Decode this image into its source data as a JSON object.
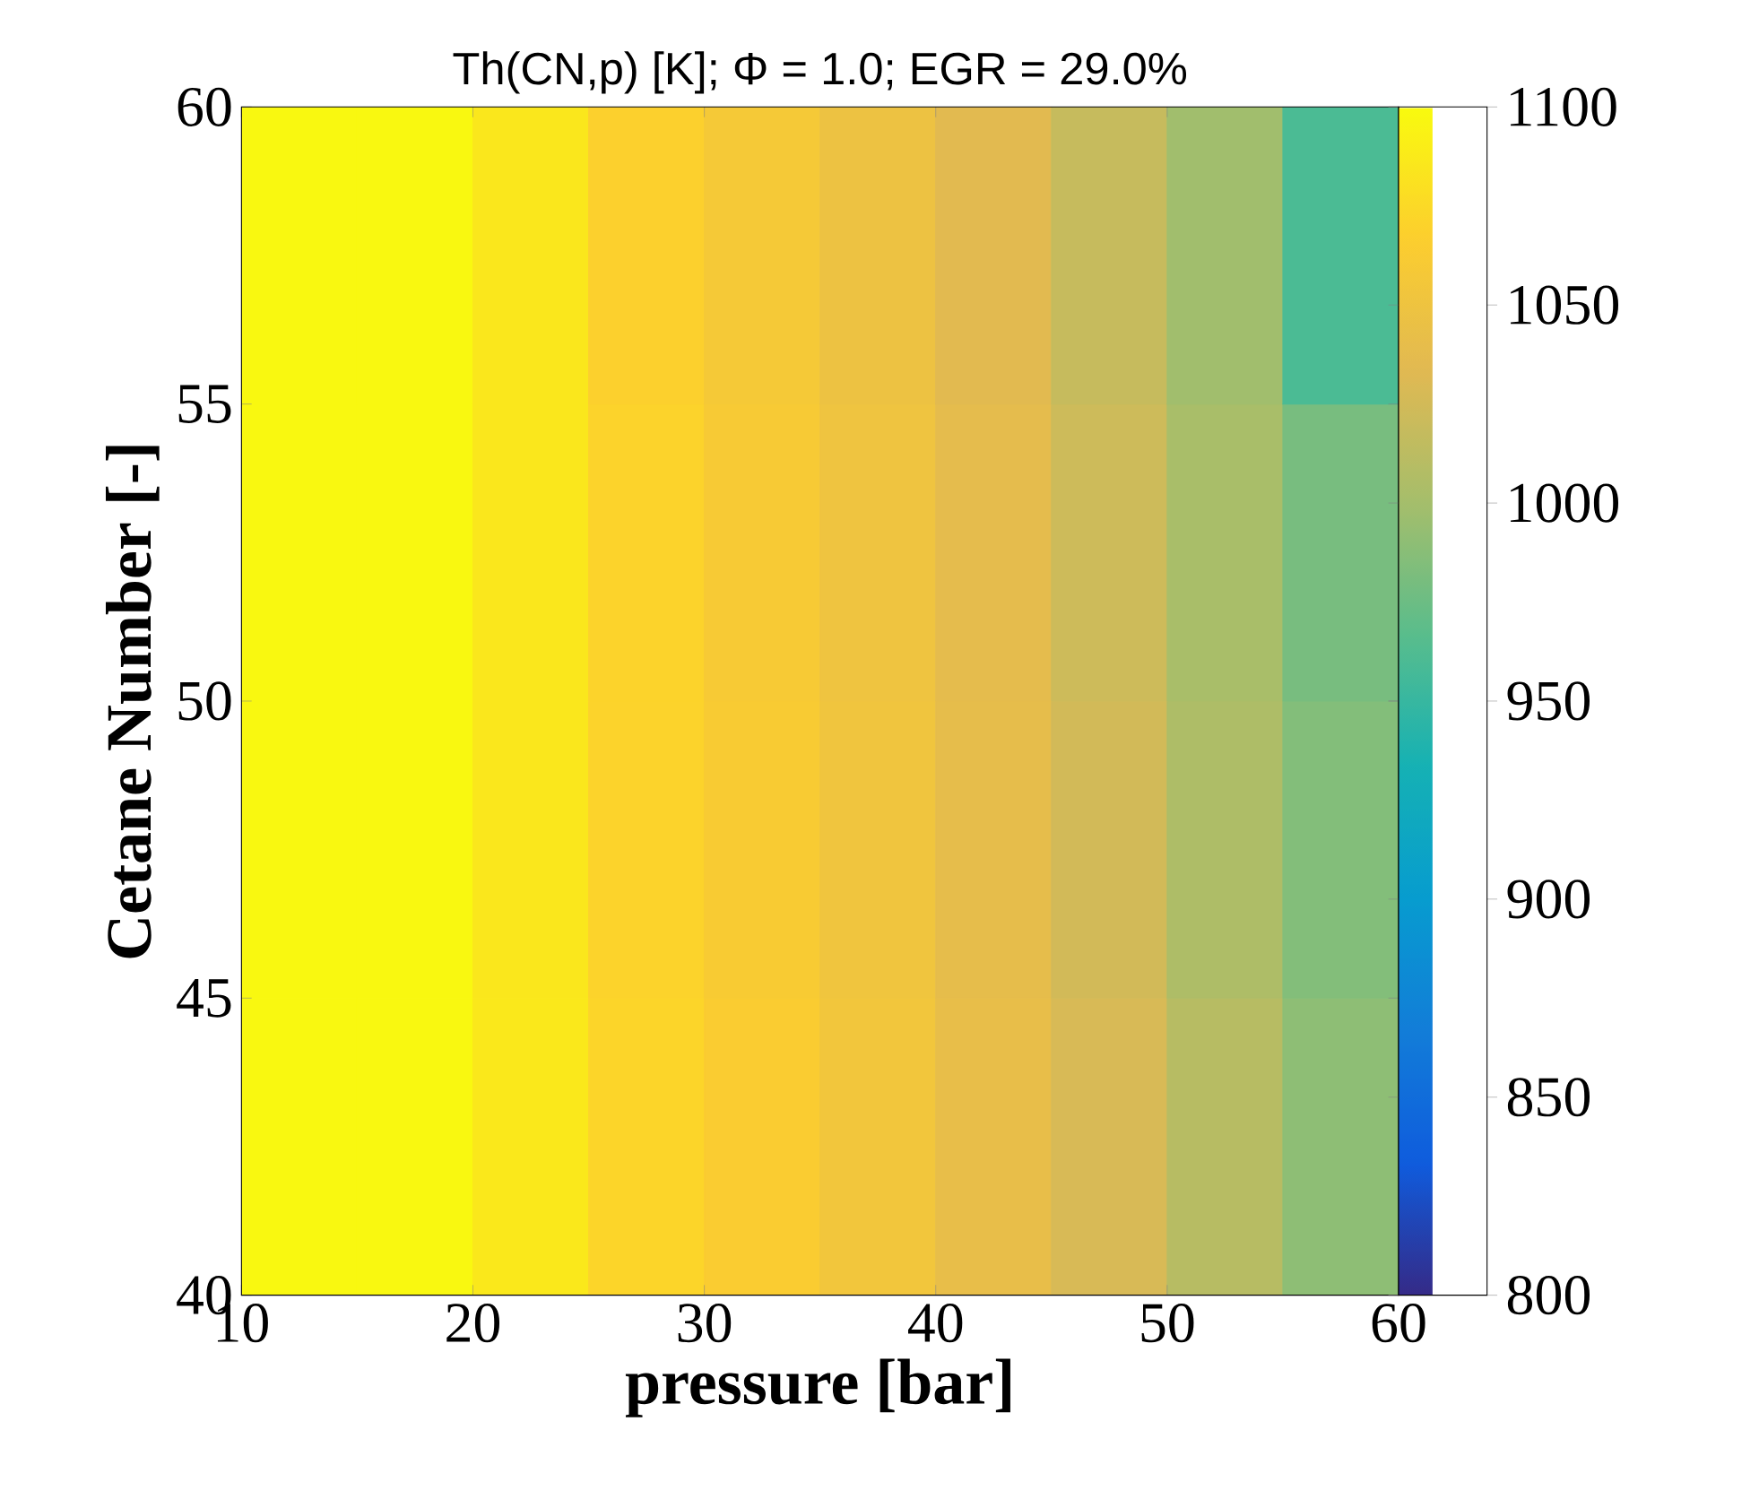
{
  "chart_data": {
    "type": "heatmap",
    "title": "Th(CN,p) [K]; Φ = 1.0; EGR = 29.0%",
    "xlabel": "pressure [bar]",
    "ylabel": "Cetane Number [-]",
    "x": [
      12.5,
      17.5,
      22.5,
      27.5,
      32.5,
      37.5,
      42.5,
      47.5,
      52.5,
      57.5
    ],
    "y": [
      57.5,
      52.5,
      47.5,
      42.5
    ],
    "cells": [
      [
        1098,
        1098,
        1085,
        1068,
        1058,
        1048,
        1035,
        1018,
        998,
        960
      ],
      [
        1098,
        1098,
        1085,
        1070,
        1060,
        1050,
        1038,
        1022,
        1002,
        980
      ],
      [
        1098,
        1098,
        1085,
        1070,
        1062,
        1052,
        1040,
        1025,
        1005,
        985
      ],
      [
        1098,
        1098,
        1086,
        1072,
        1064,
        1054,
        1042,
        1028,
        1010,
        990
      ]
    ],
    "xlim": [
      10,
      60
    ],
    "xticks": [
      10,
      20,
      30,
      40,
      50,
      60
    ],
    "ylim": [
      40,
      60
    ],
    "yticks": [
      40,
      45,
      50,
      55,
      60
    ],
    "clim": [
      800,
      1100
    ],
    "cticks": [
      800,
      850,
      900,
      950,
      1000,
      1050,
      1100
    ]
  }
}
